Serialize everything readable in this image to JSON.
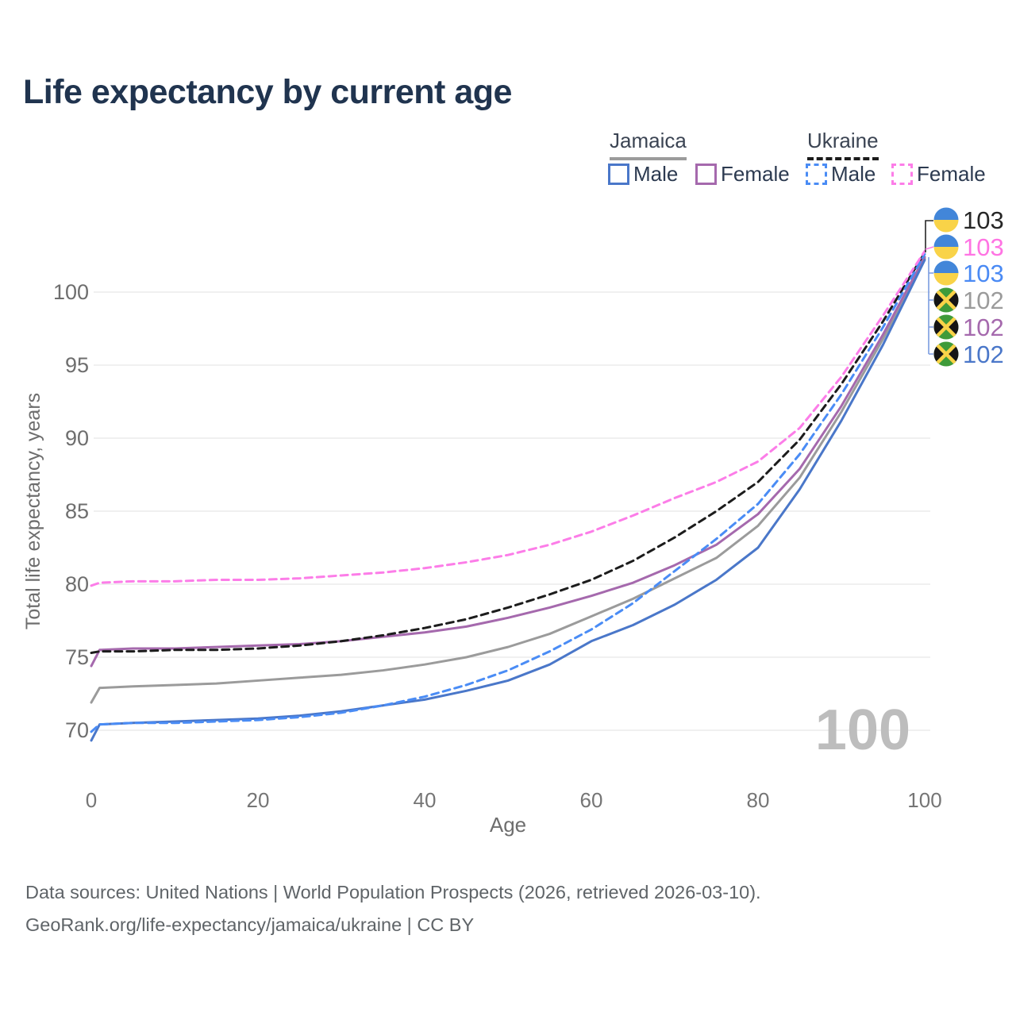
{
  "title": "Life expectancy by current age",
  "legend": {
    "groups": [
      {
        "id": "jamaica",
        "label": "Jamaica",
        "line_style": "solid",
        "line_color": "#9b9b9b",
        "items": [
          {
            "label": "Male",
            "swatch_color": "#4a77c9",
            "dash": false
          },
          {
            "label": "Female",
            "swatch_color": "#a569ad",
            "dash": false
          }
        ]
      },
      {
        "id": "ukraine",
        "label": "Ukraine",
        "line_style": "dashed",
        "line_color": "#1c1c1c",
        "items": [
          {
            "label": "Male",
            "swatch_color": "#4a8cf5",
            "dash": true
          },
          {
            "label": "Female",
            "swatch_color": "#fc7de8",
            "dash": true
          }
        ]
      }
    ]
  },
  "chart_data": {
    "type": "line",
    "title": "Life expectancy by current age",
    "xlabel": "Age",
    "ylabel": "Total life expectancy, years",
    "xlim": [
      0,
      100
    ],
    "ylim": [
      68,
      104
    ],
    "xticks": [
      0,
      20,
      40,
      60,
      80,
      100
    ],
    "yticks": [
      70,
      75,
      80,
      85,
      90,
      95,
      100
    ],
    "grid": "horizontal",
    "legend_position": "top-right",
    "x": [
      0,
      1,
      5,
      10,
      15,
      20,
      25,
      30,
      35,
      40,
      45,
      50,
      55,
      60,
      65,
      70,
      75,
      80,
      85,
      90,
      95,
      100
    ],
    "series": [
      {
        "name": "Jamaica (both sexes)",
        "country": "Jamaica",
        "sex": "both",
        "color": "#9b9b9b",
        "dash": false,
        "values": [
          71.9,
          72.9,
          73.0,
          73.1,
          73.2,
          73.4,
          73.6,
          73.8,
          74.1,
          74.5,
          75.0,
          75.7,
          76.6,
          77.8,
          79.0,
          80.4,
          81.8,
          84.0,
          87.3,
          91.8,
          96.8,
          102.3
        ]
      },
      {
        "name": "Jamaica Female",
        "country": "Jamaica",
        "sex": "female",
        "color": "#a569ad",
        "dash": false,
        "values": [
          74.4,
          75.5,
          75.6,
          75.6,
          75.7,
          75.8,
          75.9,
          76.1,
          76.4,
          76.7,
          77.1,
          77.7,
          78.4,
          79.2,
          80.1,
          81.3,
          82.7,
          84.8,
          87.9,
          92.2,
          97.1,
          102.4
        ]
      },
      {
        "name": "Jamaica Male",
        "country": "Jamaica",
        "sex": "male",
        "color": "#4a77c9",
        "dash": false,
        "values": [
          69.3,
          70.4,
          70.5,
          70.6,
          70.7,
          70.8,
          71.0,
          71.3,
          71.7,
          72.1,
          72.7,
          73.4,
          74.5,
          76.1,
          77.2,
          78.6,
          80.3,
          82.5,
          86.5,
          91.2,
          96.4,
          102.2
        ]
      },
      {
        "name": "Ukraine (both sexes)",
        "country": "Ukraine",
        "sex": "both",
        "color": "#1c1c1c",
        "dash": true,
        "values": [
          75.3,
          75.4,
          75.4,
          75.5,
          75.5,
          75.6,
          75.8,
          76.1,
          76.5,
          77.0,
          77.6,
          78.4,
          79.3,
          80.3,
          81.6,
          83.2,
          85.0,
          87.0,
          89.9,
          93.7,
          98.0,
          102.7
        ]
      },
      {
        "name": "Ukraine Male",
        "country": "Ukraine",
        "sex": "male",
        "color": "#4a8cf5",
        "dash": true,
        "values": [
          69.9,
          70.4,
          70.5,
          70.5,
          70.6,
          70.7,
          70.9,
          71.2,
          71.7,
          72.3,
          73.1,
          74.1,
          75.4,
          76.9,
          78.7,
          80.9,
          83.1,
          85.5,
          88.9,
          93.0,
          97.6,
          102.6
        ]
      },
      {
        "name": "Ukraine Female",
        "country": "Ukraine",
        "sex": "female",
        "color": "#fc7de8",
        "dash": true,
        "values": [
          79.9,
          80.1,
          80.2,
          80.2,
          80.3,
          80.3,
          80.4,
          80.6,
          80.8,
          81.1,
          81.5,
          82.0,
          82.7,
          83.6,
          84.7,
          85.9,
          87.0,
          88.4,
          90.7,
          94.2,
          98.4,
          102.8
        ]
      }
    ],
    "end_labels": [
      {
        "text": "103",
        "color": "#262626",
        "flag": "ukraine-flag-icon"
      },
      {
        "text": "103",
        "color": "#ff74e3",
        "flag": "ukraine-flag-icon"
      },
      {
        "text": "103",
        "color": "#4a8af4",
        "flag": "ukraine-flag-icon"
      },
      {
        "text": "102",
        "color": "#9b9b9b",
        "flag": "jamaica-flag-icon"
      },
      {
        "text": "102",
        "color": "#a569ad",
        "flag": "jamaica-flag-icon"
      },
      {
        "text": "102",
        "color": "#4a77c9",
        "flag": "jamaica-flag-icon"
      }
    ],
    "watermark": "100",
    "flag_colors": {
      "ukraine_blue": "#4286d9",
      "ukraine_yellow": "#f9d348",
      "jamaica_green": "#3f9b3a",
      "jamaica_black": "#151515",
      "jamaica_yellow": "#f9d348"
    },
    "grid_color": "#e6e6e6",
    "tick_color": "#6e6e6e",
    "watermark_color": "#bdbdbd"
  },
  "footer": {
    "line1": "Data sources: United Nations | World Population Prospects (2026, retrieved 2026-03-10).",
    "line2": "GeoRank.org/life-expectancy/jamaica/ukraine | CC BY"
  }
}
